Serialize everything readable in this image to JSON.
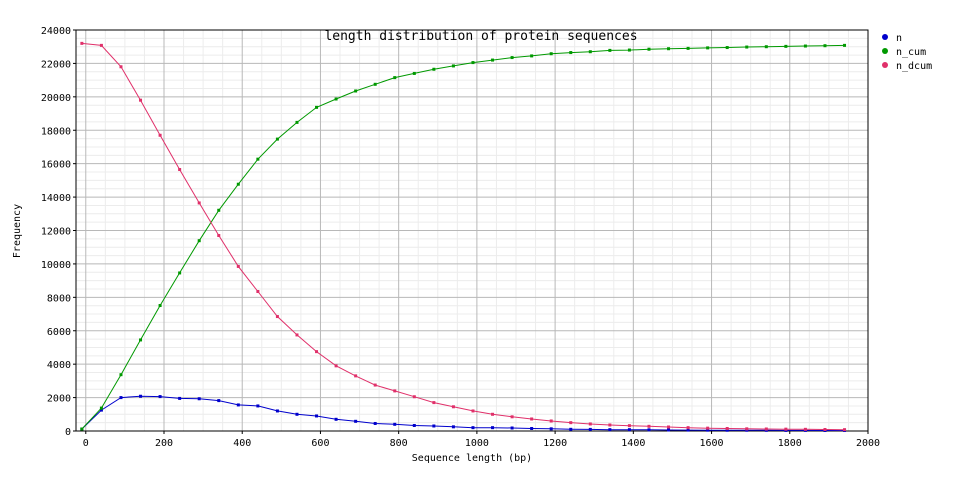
{
  "chart_data": {
    "type": "line",
    "title": "length distribution of protein sequences",
    "xlabel": "Sequence length (bp)",
    "ylabel": "Frequency",
    "xlim": [
      -25,
      2000
    ],
    "ylim": [
      0,
      24000
    ],
    "xticks": [
      0,
      200,
      400,
      600,
      800,
      1000,
      1200,
      1400,
      1600,
      1800,
      2000
    ],
    "yticks": [
      0,
      2000,
      4000,
      6000,
      8000,
      10000,
      12000,
      14000,
      16000,
      18000,
      20000,
      22000,
      24000
    ],
    "grid": true,
    "legend_position": "right",
    "x": [
      -10,
      40,
      90,
      140,
      190,
      240,
      290,
      340,
      390,
      440,
      490,
      540,
      590,
      640,
      690,
      740,
      790,
      840,
      890,
      940,
      990,
      1040,
      1090,
      1140,
      1190,
      1240,
      1290,
      1340,
      1390,
      1440,
      1490,
      1540,
      1590,
      1640,
      1690,
      1740,
      1790,
      1840,
      1890,
      1940
    ],
    "series": [
      {
        "name": "n",
        "color": "#0000cc",
        "values": [
          120,
          1250,
          2000,
          2080,
          2060,
          1950,
          1930,
          1820,
          1560,
          1500,
          1200,
          1000,
          900,
          700,
          580,
          450,
          400,
          330,
          300,
          250,
          200,
          200,
          180,
          150,
          130,
          100,
          95,
          80,
          80,
          70,
          60,
          55,
          50,
          45,
          45,
          40,
          35,
          35,
          30,
          30
        ]
      },
      {
        "name": "n_cum",
        "color": "#009900",
        "values": [
          120,
          1370,
          3370,
          5450,
          7510,
          9460,
          11390,
          13210,
          14770,
          16270,
          17470,
          18470,
          19370,
          19870,
          20350,
          20750,
          21150,
          21400,
          21650,
          21850,
          22050,
          22200,
          22350,
          22450,
          22580,
          22650,
          22700,
          22780,
          22800,
          22850,
          22880,
          22900,
          22930,
          22950,
          22980,
          23000,
          23020,
          23040,
          23060,
          23080
        ]
      },
      {
        "name": "n_dcum",
        "color": "#e0306a",
        "values": [
          23200,
          23080,
          21800,
          19800,
          17700,
          15650,
          13650,
          11700,
          9850,
          8350,
          6850,
          5750,
          4750,
          3900,
          3300,
          2750,
          2400,
          2050,
          1700,
          1450,
          1200,
          1000,
          850,
          720,
          600,
          500,
          420,
          360,
          320,
          280,
          240,
          200,
          170,
          150,
          130,
          120,
          110,
          100,
          90,
          80
        ]
      }
    ]
  }
}
